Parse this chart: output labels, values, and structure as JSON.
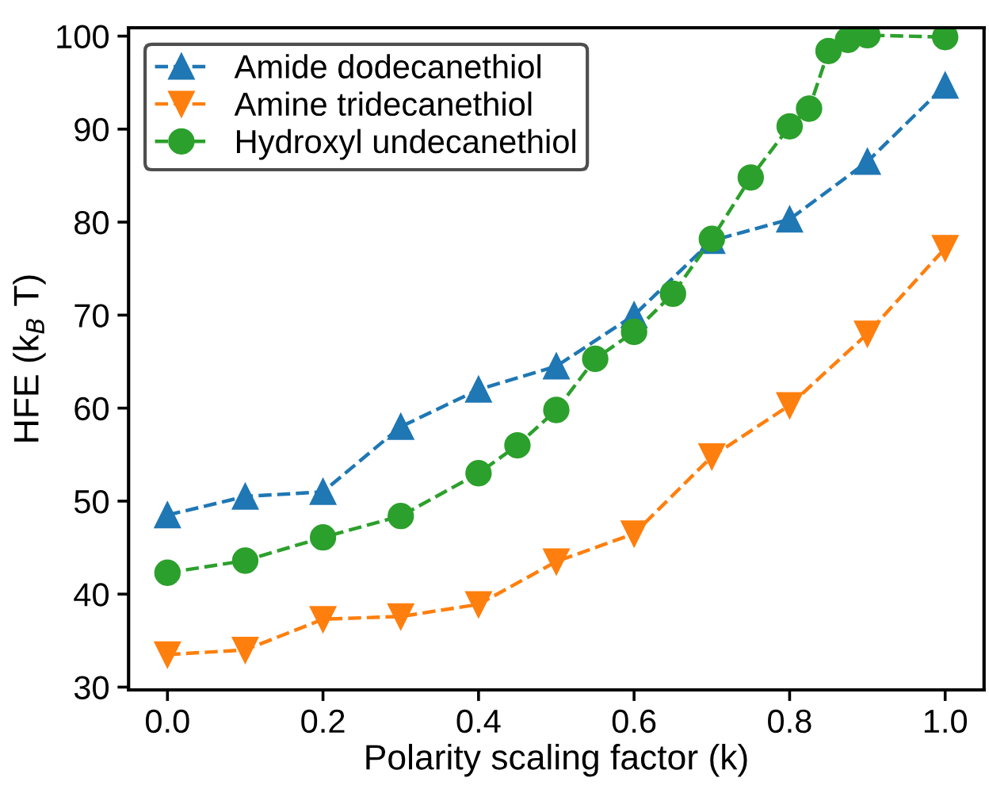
{
  "chart_data": {
    "type": "line",
    "xlabel": "Polarity scaling factor (k)",
    "ylabel": "HFE (k$_{B}$ T)",
    "xlim": [
      -0.05,
      1.05
    ],
    "ylim": [
      29.7,
      100.9
    ],
    "xticks": [
      {
        "value": 0,
        "label": "0.0"
      },
      0.2,
      0.4,
      0.6,
      0.8,
      {
        "value": 1,
        "label": "1.0"
      }
    ],
    "yticks": [
      30,
      40,
      50,
      60,
      70,
      80,
      90,
      100
    ],
    "grid": false,
    "legend": "top left",
    "line_style": "dashed",
    "series": [
      {
        "name": "Amide dodecanethiol",
        "color": "#1f77b4",
        "marker": "triangle",
        "x": [
          0,
          0.1,
          0.2,
          0.3,
          0.4,
          0.5,
          0.6,
          0.7,
          0.8,
          0.9,
          1.0
        ],
        "values": [
          48.5,
          50.5,
          51,
          58,
          62,
          64.5,
          70,
          78,
          80.3,
          86.5,
          94.7
        ]
      },
      {
        "name": "Amine tridecanethiol",
        "color": "#ff7f0e",
        "marker": "triangle_down",
        "x": [
          0,
          0.1,
          0.2,
          0.3,
          0.4,
          0.5,
          0.6,
          0.7,
          0.8,
          0.9,
          1.0
        ],
        "values": [
          33.5,
          34,
          37.3,
          37.6,
          38.9,
          43.5,
          46.5,
          54.8,
          60.3,
          68,
          77.2
        ]
      },
      {
        "name": "Hydroxyl undecanethiol",
        "color": "#2ca02c",
        "marker": "circle",
        "x": [
          0,
          0.1,
          0.2,
          0.3,
          0.4,
          0.45,
          0.5,
          0.55,
          0.6,
          0.65,
          0.7,
          0.75,
          0.8,
          0.825,
          0.85,
          0.875,
          0.9,
          1.0
        ],
        "values": [
          42.3,
          43.6,
          46.1,
          48.4,
          53,
          56,
          59.8,
          65.3,
          68.2,
          72.3,
          78.2,
          84.8,
          90.3,
          92.2,
          98.4,
          99.6,
          100.1,
          99.9
        ]
      }
    ]
  }
}
